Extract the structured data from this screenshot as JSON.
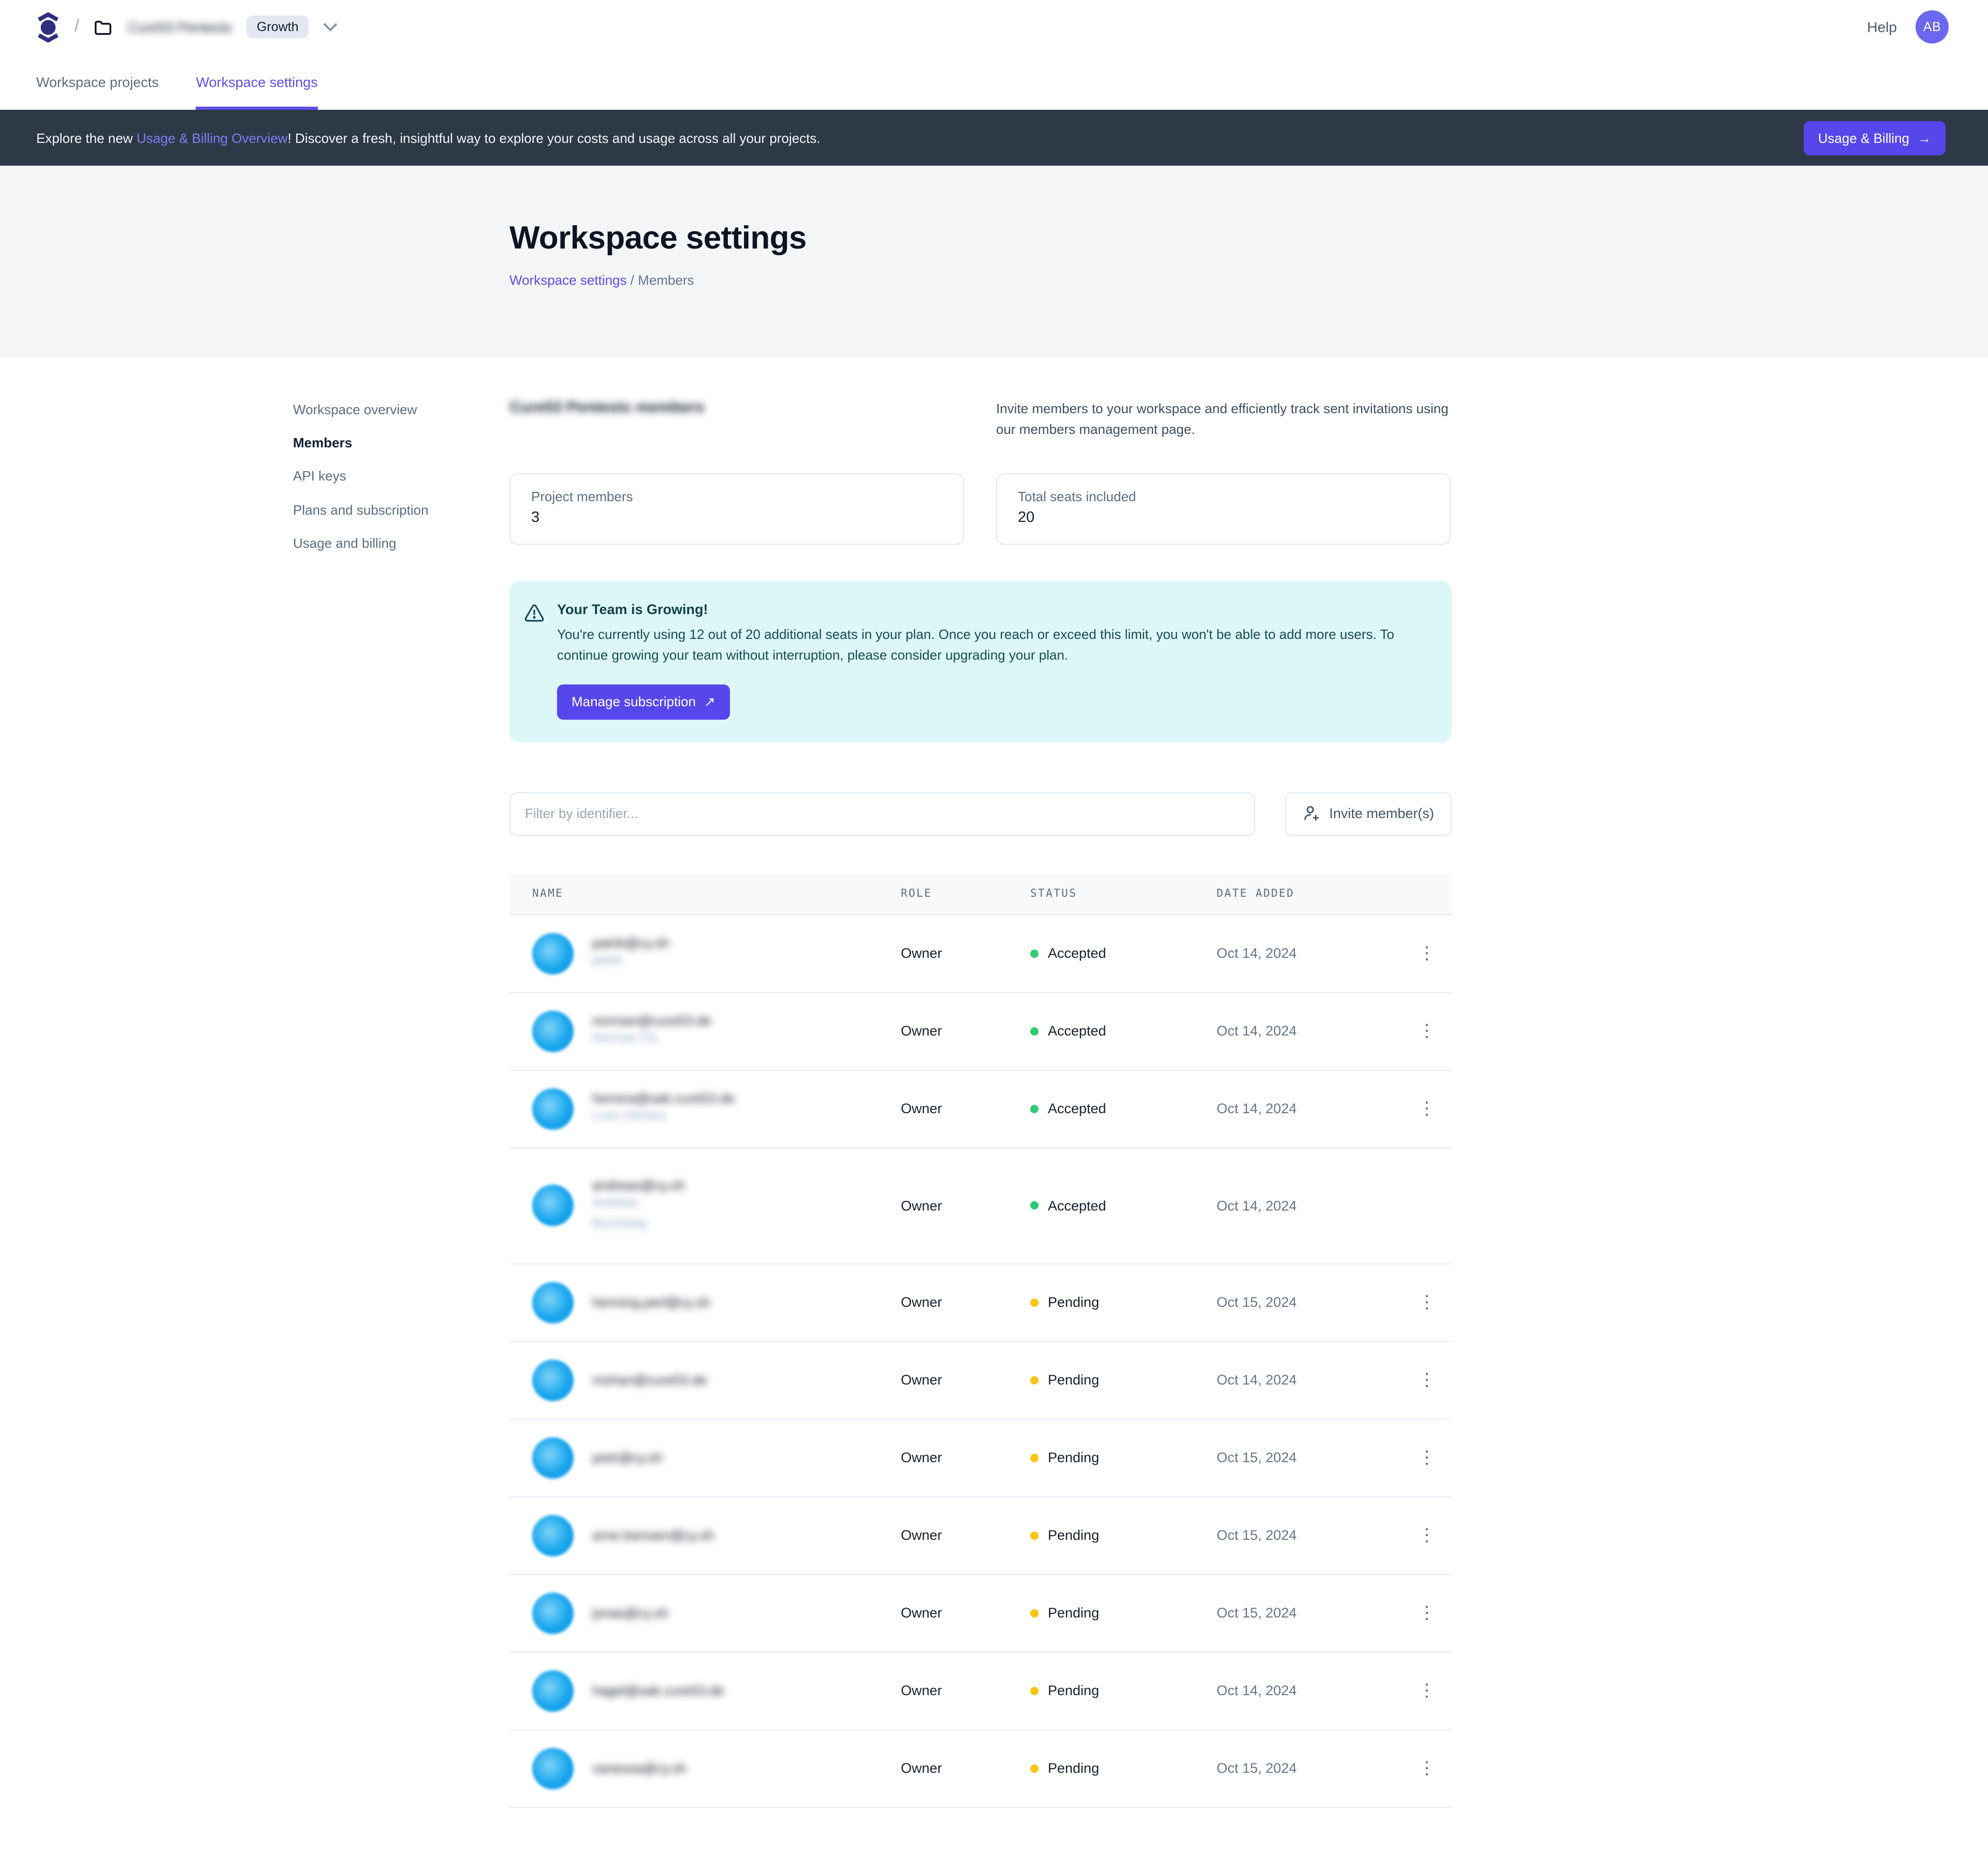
{
  "header": {
    "crumb_slash": "/",
    "workspace_name": "Cure53 Pentests",
    "workspace_name_blurred": true,
    "plan_badge": "Growth",
    "help_label": "Help",
    "avatar_initials": "AB"
  },
  "tabs": [
    {
      "label": "Workspace projects",
      "active": false
    },
    {
      "label": "Workspace settings",
      "active": true
    }
  ],
  "banner": {
    "text_prefix": "Explore the new ",
    "link_text": "Usage & Billing Overview",
    "text_suffix": "! Discover a fresh, insightful way to explore your costs and usage across all your projects.",
    "button_label": "Usage & Billing",
    "button_arrow": "→"
  },
  "hero": {
    "title": "Workspace settings",
    "breadcrumb_link": "Workspace settings",
    "breadcrumb_sep": "/",
    "breadcrumb_current": "Members"
  },
  "sidebar": {
    "items": [
      {
        "label": "Workspace overview",
        "active": false
      },
      {
        "label": "Members",
        "active": true
      },
      {
        "label": "API keys",
        "active": false
      },
      {
        "label": "Plans and subscription",
        "active": false
      },
      {
        "label": "Usage and billing",
        "active": false
      }
    ]
  },
  "members_section": {
    "heading": "Cure53 Pentests members",
    "heading_blurred": true,
    "description": "Invite members to your workspace and efficiently track sent invitations using our members management page.",
    "stats": [
      {
        "label": "Project members",
        "value": "3"
      },
      {
        "label": "Total seats included",
        "value": "20"
      }
    ]
  },
  "alert": {
    "title": "Your Team is Growing!",
    "body": "You're currently using 12 out of 20 additional seats in your plan. Once you reach or exceed this limit, you won't be able to add more users. To continue growing your team without interruption, please consider upgrading your plan.",
    "button_label": "Manage subscription",
    "button_arrow": "↗"
  },
  "toolbar": {
    "filter_placeholder": "Filter by identifier...",
    "invite_label": "Invite member(s)"
  },
  "table": {
    "columns": [
      "NAME",
      "ROLE",
      "STATUS",
      "DATE ADDED"
    ],
    "rows": [
      {
        "email": "patrik@cy.sh",
        "name_lines": [
          "patrik"
        ],
        "role": "Owner",
        "status": "Accepted",
        "date": "Oct 14, 2024",
        "has_menu": true,
        "blurred": true
      },
      {
        "email": "norman@cure53.de",
        "name_lines": [
          "Norman Cls"
        ],
        "role": "Owner",
        "status": "Accepted",
        "date": "Oct 14, 2024",
        "has_menu": true,
        "blurred": true
      },
      {
        "email": "herrera@oak.cure53.de",
        "name_lines": [
          "Luan Herrera"
        ],
        "role": "Owner",
        "status": "Accepted",
        "date": "Oct 14, 2024",
        "has_menu": true,
        "blurred": true
      },
      {
        "email": "andreas@cy.sh",
        "name_lines": [
          "Andreas",
          "Buchsteig"
        ],
        "role": "Owner",
        "status": "Accepted",
        "date": "Oct 14, 2024",
        "has_menu": false,
        "blurred": true
      },
      {
        "email": "henning.perl@cy.sh",
        "name_lines": [],
        "role": "Owner",
        "status": "Pending",
        "date": "Oct 15, 2024",
        "has_menu": true,
        "blurred": true
      },
      {
        "email": "mohan@cure53.de",
        "name_lines": [],
        "role": "Owner",
        "status": "Pending",
        "date": "Oct 14, 2024",
        "has_menu": true,
        "blurred": true
      },
      {
        "email": "piotr@cy.sh",
        "name_lines": [],
        "role": "Owner",
        "status": "Pending",
        "date": "Oct 15, 2024",
        "has_menu": true,
        "blurred": true
      },
      {
        "email": "arne.loensen@cy.sh",
        "name_lines": [],
        "role": "Owner",
        "status": "Pending",
        "date": "Oct 15, 2024",
        "has_menu": true,
        "blurred": true
      },
      {
        "email": "jonas@cy.sh",
        "name_lines": [],
        "role": "Owner",
        "status": "Pending",
        "date": "Oct 15, 2024",
        "has_menu": true,
        "blurred": true
      },
      {
        "email": "hagel@oak.cure53.de",
        "name_lines": [],
        "role": "Owner",
        "status": "Pending",
        "date": "Oct 14, 2024",
        "has_menu": true,
        "blurred": true
      },
      {
        "email": "vanessa@cy.sh",
        "name_lines": [],
        "role": "Owner",
        "status": "Pending",
        "date": "Oct 15, 2024",
        "has_menu": true,
        "blurred": true
      }
    ]
  },
  "colors": {
    "accent_indigo": "#5646ec",
    "link_indigo": "#5b4fe9",
    "banner_bg": "#2e3947",
    "banner_link": "#7d7ff2",
    "hero_bg": "#f4f5f7",
    "alert_bg": "#ddf7f9",
    "alert_text": "#174b54",
    "status_accepted_dot": "#2fcb6f",
    "status_pending_dot": "#f8c513",
    "member_avatar_blue": "#18a6ed",
    "user_avatar_bg": "#6b67ee"
  }
}
